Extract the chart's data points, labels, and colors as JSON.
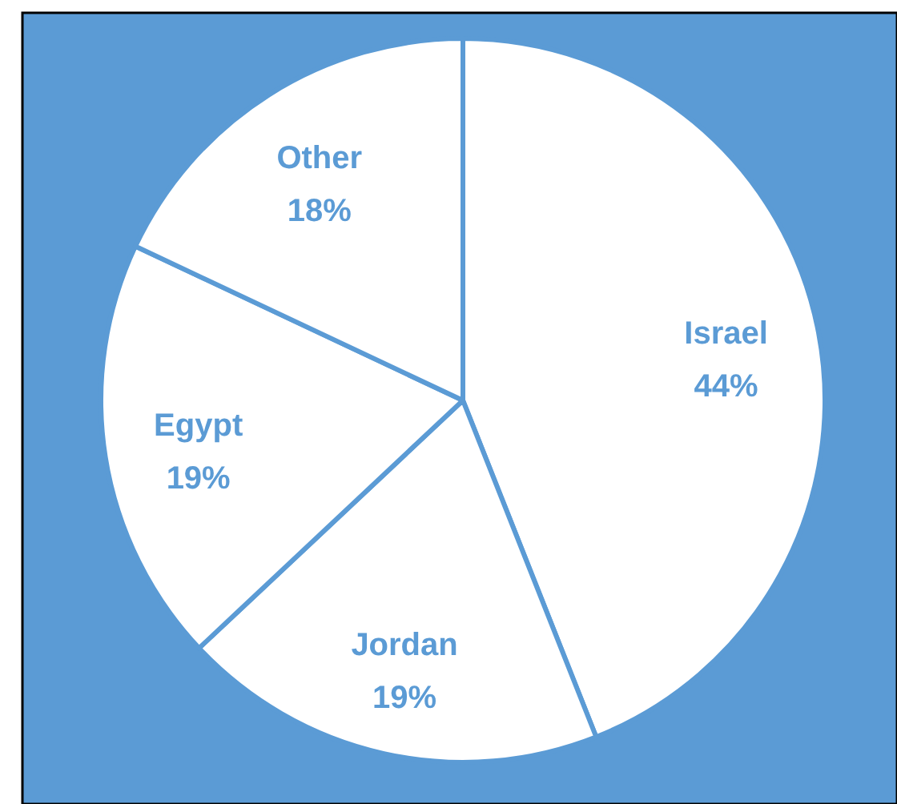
{
  "chart_data": {
    "type": "pie",
    "categories": [
      "Israel",
      "Jordan",
      "Egypt",
      "Other"
    ],
    "values": [
      44,
      19,
      19,
      18
    ],
    "colors": [
      "#ffffff",
      "#ffffff",
      "#ffffff",
      "#ffffff"
    ],
    "value_labels": [
      "44%",
      "19%",
      "19%",
      "18%"
    ]
  }
}
